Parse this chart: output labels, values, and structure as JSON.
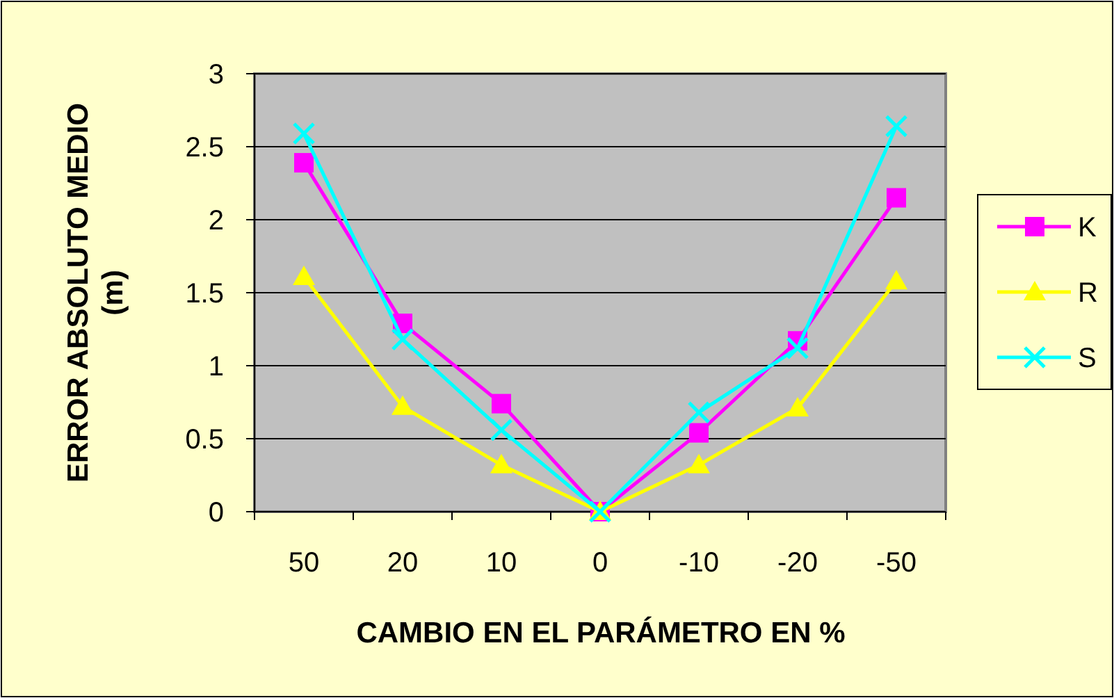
{
  "chart_data": {
    "type": "line",
    "xlabel": "CAMBIO EN EL PARÁMETRO EN %",
    "ylabel": "ERROR ABSOLUTO MEDIO (m)",
    "categories": [
      "50",
      "20",
      "10",
      "0",
      "-10",
      "-20",
      "-50"
    ],
    "series": [
      {
        "name": "K",
        "color": "#ff00ff",
        "marker": "square",
        "values": [
          2.39,
          1.29,
          0.74,
          0,
          0.54,
          1.17,
          2.15
        ]
      },
      {
        "name": "R",
        "color": "#ffff00",
        "marker": "triangle",
        "values": [
          1.61,
          0.72,
          0.32,
          0,
          0.32,
          0.71,
          1.58
        ]
      },
      {
        "name": "S",
        "color": "#00ffff",
        "marker": "cross",
        "values": [
          2.59,
          1.18,
          0.56,
          0,
          0.68,
          1.12,
          2.64
        ]
      }
    ],
    "ylim": [
      0,
      3
    ],
    "yticks": [
      0,
      0.5,
      1,
      1.5,
      2,
      2.5,
      3
    ],
    "grid": "y",
    "legend": "right"
  }
}
